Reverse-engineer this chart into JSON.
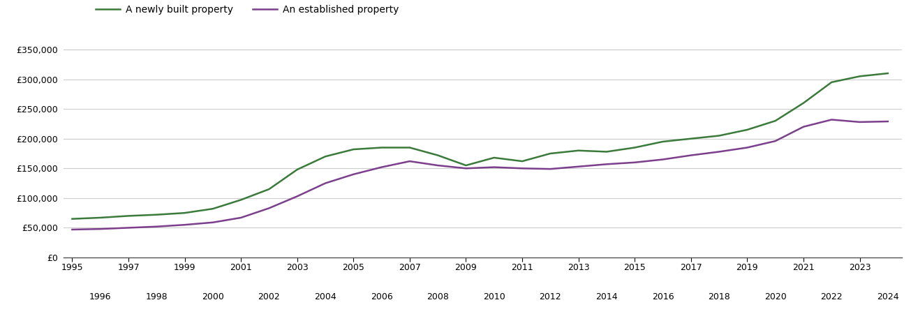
{
  "newly_built": {
    "years": [
      1995,
      1996,
      1997,
      1998,
      1999,
      2000,
      2001,
      2002,
      2003,
      2004,
      2005,
      2006,
      2007,
      2008,
      2009,
      2010,
      2011,
      2012,
      2013,
      2014,
      2015,
      2016,
      2017,
      2018,
      2019,
      2020,
      2021,
      2022,
      2023,
      2024
    ],
    "values": [
      65000,
      67000,
      70000,
      72000,
      75000,
      82000,
      97000,
      115000,
      148000,
      170000,
      182000,
      185000,
      185000,
      172000,
      155000,
      168000,
      162000,
      175000,
      180000,
      178000,
      185000,
      195000,
      200000,
      205000,
      215000,
      230000,
      260000,
      295000,
      305000,
      310000
    ]
  },
  "established": {
    "years": [
      1995,
      1996,
      1997,
      1998,
      1999,
      2000,
      2001,
      2002,
      2003,
      2004,
      2005,
      2006,
      2007,
      2008,
      2009,
      2010,
      2011,
      2012,
      2013,
      2014,
      2015,
      2016,
      2017,
      2018,
      2019,
      2020,
      2021,
      2022,
      2023,
      2024
    ],
    "values": [
      47000,
      48000,
      50000,
      52000,
      55000,
      59000,
      67000,
      83000,
      103000,
      125000,
      140000,
      152000,
      162000,
      155000,
      150000,
      152000,
      150000,
      149000,
      153000,
      157000,
      160000,
      165000,
      172000,
      178000,
      185000,
      196000,
      220000,
      232000,
      228000,
      229000
    ]
  },
  "newly_built_color": "#3a7a3a",
  "established_color": "#7b3f8c",
  "legend_labels": [
    "A newly built property",
    "An established property"
  ],
  "yticks": [
    0,
    50000,
    100000,
    150000,
    200000,
    250000,
    300000,
    350000
  ],
  "ylim": [
    0,
    370000
  ],
  "xlim_min": 1995,
  "xlim_max": 2024,
  "background_color": "#ffffff",
  "grid_color": "#cccccc",
  "line_width": 1.8
}
